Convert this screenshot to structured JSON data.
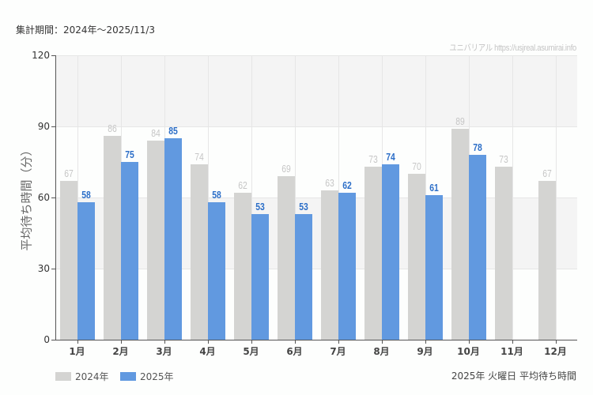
{
  "header": {
    "period": "集計期間：2024年～2025/11/3",
    "credit": "ユニバリアル  https://usjreal.asumirai.info"
  },
  "footer": {
    "caption": "2025年 火曜日 平均待ち時間"
  },
  "legend": [
    {
      "label": "2024年",
      "color": "#d4d4d2"
    },
    {
      "label": "2025年",
      "color": "#6199e0"
    }
  ],
  "chart_data": {
    "type": "bar",
    "title": "2025年 火曜日 平均待ち時間",
    "subtitle": "集計期間：2024年～2025/11/3",
    "xlabel": "",
    "ylabel": "平均待ち時間（分）",
    "ylim": [
      0,
      120
    ],
    "yticks": [
      0,
      30,
      60,
      90,
      120
    ],
    "grid": true,
    "legend_position": "bottom-left",
    "categories": [
      "1月",
      "2月",
      "3月",
      "4月",
      "5月",
      "6月",
      "7月",
      "8月",
      "9月",
      "10月",
      "11月",
      "12月"
    ],
    "series": [
      {
        "name": "2024年",
        "color": "#d4d4d2",
        "values": [
          67,
          86,
          84,
          74,
          62,
          69,
          63,
          73,
          70,
          89,
          73,
          67
        ]
      },
      {
        "name": "2025年",
        "color": "#6199e0",
        "values": [
          58,
          75,
          85,
          58,
          53,
          53,
          62,
          74,
          61,
          78,
          null,
          null
        ]
      }
    ]
  }
}
